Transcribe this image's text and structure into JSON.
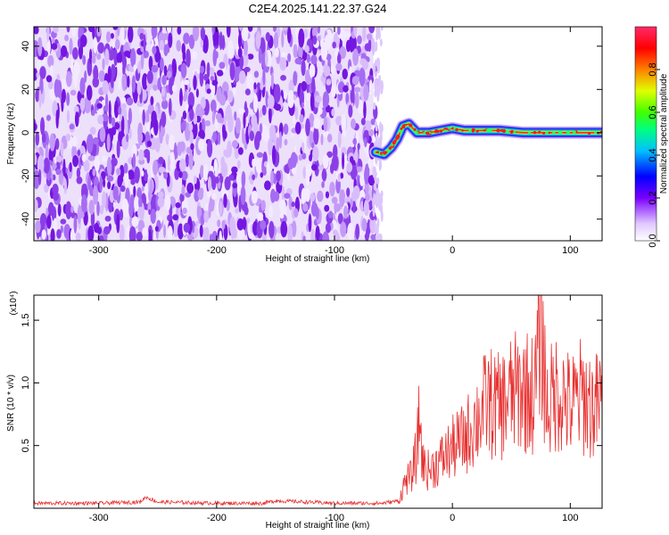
{
  "title": "C2E4.2025.141.22.37.G24",
  "colors": {
    "snr_line": "#e83232",
    "noise_purple": "#8a2be2",
    "axis": "#000000"
  },
  "chart_data": [
    {
      "type": "heatmap",
      "xlabel": "Height of straight line (km)",
      "ylabel": "Frequency (Hz)",
      "xlim": [
        -355,
        127
      ],
      "ylim": [
        -50,
        49
      ],
      "x_ticks": [
        -300,
        -200,
        -100,
        0,
        100
      ],
      "x_tick_labels": [
        "-300",
        "-200",
        "-100",
        "0",
        "100"
      ],
      "y_ticks": [
        -40,
        -20,
        0,
        20,
        40
      ],
      "y_tick_labels": [
        "-40",
        "-20",
        "0",
        "20",
        "40"
      ],
      "colorbar": {
        "label": "Normalized spectral amplitude",
        "range": [
          0,
          1
        ],
        "ticks": [
          0,
          0.2,
          0.4,
          0.6,
          0.8
        ],
        "tick_labels": [
          "0.0",
          "0.2",
          "0.4",
          "0.6",
          "0.8"
        ],
        "colormap": "rainbow"
      },
      "noise_region": {
        "x": [
          -355,
          -67
        ],
        "y": [
          -50,
          49
        ]
      },
      "signal_track": [
        {
          "x": -65,
          "y": -9
        },
        {
          "x": -58,
          "y": -10
        },
        {
          "x": -52,
          "y": -7
        },
        {
          "x": -47,
          "y": -3
        },
        {
          "x": -42,
          "y": 3
        },
        {
          "x": -37,
          "y": 4
        },
        {
          "x": -30,
          "y": 0
        },
        {
          "x": -20,
          "y": 0
        },
        {
          "x": -10,
          "y": 1
        },
        {
          "x": 0,
          "y": 2
        },
        {
          "x": 10,
          "y": 1
        },
        {
          "x": 25,
          "y": 1
        },
        {
          "x": 40,
          "y": 1
        },
        {
          "x": 60,
          "y": 0
        },
        {
          "x": 80,
          "y": 0
        },
        {
          "x": 100,
          "y": 0
        },
        {
          "x": 127,
          "y": 0
        }
      ]
    },
    {
      "type": "line",
      "xlabel": "Height of straight line (km)",
      "ylabel": "SNR (10 * v/v)",
      "y_multiplier": "(x10⁴)",
      "xlim": [
        -355,
        127
      ],
      "ylim": [
        0,
        1.7
      ],
      "x_ticks": [
        -300,
        -200,
        -100,
        0,
        100
      ],
      "x_tick_labels": [
        "-300",
        "-200",
        "-100",
        "0",
        "100"
      ],
      "y_ticks": [
        0.5,
        1.0,
        1.5
      ],
      "y_tick_labels": [
        "0.5",
        "1.0",
        "1.5"
      ],
      "series": [
        {
          "x": [
            -355,
            -300,
            -265,
            -260,
            -250,
            -200,
            -160,
            -150,
            -100,
            -60,
            -45,
            -40,
            -35,
            -30,
            -28,
            -25,
            -20,
            -10,
            0,
            10,
            20,
            30,
            40,
            50,
            60,
            70,
            75,
            80,
            90,
            100,
            110,
            120,
            127
          ],
          "y": [
            0.04,
            0.04,
            0.05,
            0.09,
            0.05,
            0.04,
            0.04,
            0.06,
            0.04,
            0.04,
            0.06,
            0.22,
            0.25,
            0.45,
            0.75,
            0.35,
            0.3,
            0.38,
            0.48,
            0.55,
            0.7,
            0.85,
            0.8,
            0.9,
            0.95,
            0.9,
            1.55,
            0.8,
            0.95,
            0.8,
            0.9,
            0.8,
            0.85
          ]
        }
      ]
    }
  ]
}
